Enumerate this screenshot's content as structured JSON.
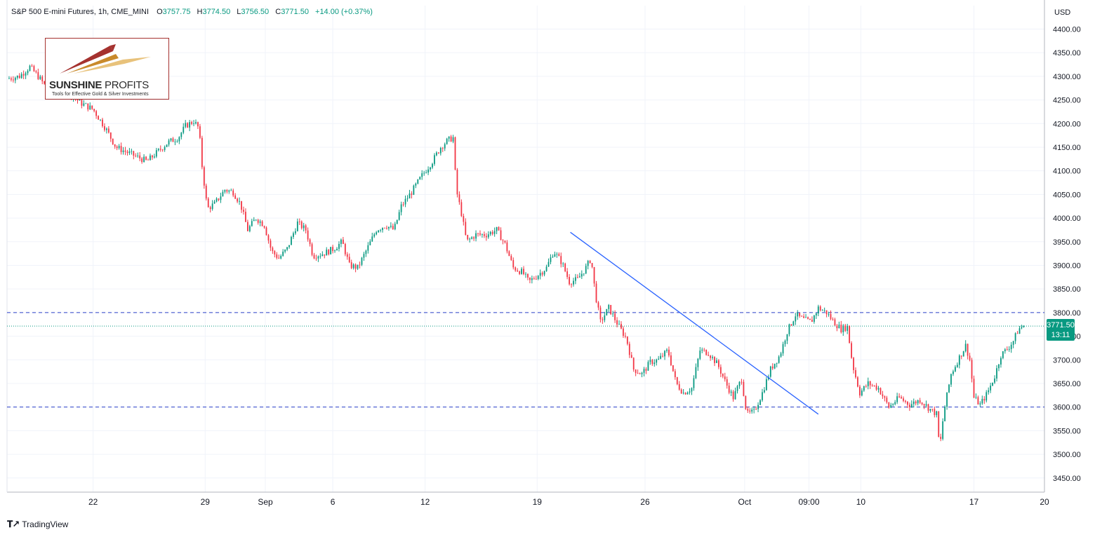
{
  "header": {
    "symbol": "S&P 500 E-mini Futures, 1h, CME_MINI",
    "o_label": "O",
    "o_value": "3757.75",
    "h_label": "H",
    "h_value": "3774.50",
    "l_label": "L",
    "l_value": "3756.50",
    "c_label": "C",
    "c_value": "3771.50",
    "change": "+14.00 (+0.37%)"
  },
  "currency": "USD",
  "current_price": {
    "price": "3771.50",
    "countdown": "13:11"
  },
  "watermark": {
    "name_bold": "SUNSHINE",
    "name_thin": "PROFITS",
    "tagline": "Tools for Effective Gold & Silver Investments"
  },
  "footer": {
    "brand": "TradingView"
  },
  "colors": {
    "up": "#089981",
    "down": "#f23645",
    "level_line": "#2a3fc7",
    "trendline": "#2962ff",
    "grid": "#f0f3fa"
  },
  "chart_data": {
    "type": "candlestick",
    "title": "S&P 500 E-mini Futures, 1h, CME_MINI",
    "ylim": [
      3420,
      4420
    ],
    "y_ticks": [
      3450,
      3500,
      3550,
      3600,
      3650,
      3700,
      3750,
      3800,
      3850,
      3900,
      3950,
      4000,
      4050,
      4100,
      4150,
      4200,
      4250,
      4300,
      4350,
      4400
    ],
    "y_tick_labels": [
      "3450.00",
      "3500.00",
      "3550.00",
      "3600.00",
      "3650.00",
      "3700.00",
      "3750.00",
      "3800.00",
      "3850.00",
      "3900.00",
      "3950.00",
      "4000.00",
      "4050.00",
      "4100.00",
      "4150.00",
      "4200.00",
      "4250.00",
      "4300.00",
      "4350.00",
      "4400.00"
    ],
    "x_tick_labels": [
      "22",
      "29",
      "Sep",
      "6",
      "12",
      "19",
      "26",
      "Oct",
      "09:00",
      "10",
      "17",
      "20"
    ],
    "x_ticks_t": [
      0.083,
      0.191,
      0.249,
      0.314,
      0.403,
      0.511,
      0.615,
      0.711,
      0.773,
      0.823,
      0.932,
      1.0
    ],
    "price_path": [
      [
        0.0,
        4295
      ],
      [
        0.012,
        4300
      ],
      [
        0.022,
        4320
      ],
      [
        0.03,
        4300
      ],
      [
        0.04,
        4270
      ],
      [
        0.055,
        4275
      ],
      [
        0.07,
        4245
      ],
      [
        0.083,
        4230
      ],
      [
        0.095,
        4190
      ],
      [
        0.105,
        4150
      ],
      [
        0.115,
        4140
      ],
      [
        0.125,
        4130
      ],
      [
        0.135,
        4120
      ],
      [
        0.145,
        4140
      ],
      [
        0.155,
        4160
      ],
      [
        0.165,
        4170
      ],
      [
        0.172,
        4195
      ],
      [
        0.18,
        4205
      ],
      [
        0.185,
        4190
      ],
      [
        0.188,
        4110
      ],
      [
        0.193,
        4020
      ],
      [
        0.2,
        4030
      ],
      [
        0.21,
        4060
      ],
      [
        0.218,
        4055
      ],
      [
        0.225,
        4030
      ],
      [
        0.232,
        3975
      ],
      [
        0.24,
        4000
      ],
      [
        0.248,
        3985
      ],
      [
        0.255,
        3930
      ],
      [
        0.262,
        3915
      ],
      [
        0.27,
        3935
      ],
      [
        0.28,
        3990
      ],
      [
        0.288,
        3975
      ],
      [
        0.295,
        3920
      ],
      [
        0.305,
        3925
      ],
      [
        0.315,
        3935
      ],
      [
        0.323,
        3950
      ],
      [
        0.33,
        3900
      ],
      [
        0.338,
        3895
      ],
      [
        0.346,
        3930
      ],
      [
        0.356,
        3975
      ],
      [
        0.365,
        3985
      ],
      [
        0.373,
        3975
      ],
      [
        0.38,
        4025
      ],
      [
        0.39,
        4055
      ],
      [
        0.4,
        4090
      ],
      [
        0.41,
        4120
      ],
      [
        0.418,
        4150
      ],
      [
        0.425,
        4165
      ],
      [
        0.43,
        4170
      ],
      [
        0.433,
        4060
      ],
      [
        0.438,
        4010
      ],
      [
        0.443,
        3950
      ],
      [
        0.452,
        3965
      ],
      [
        0.462,
        3965
      ],
      [
        0.472,
        3975
      ],
      [
        0.48,
        3945
      ],
      [
        0.488,
        3895
      ],
      [
        0.497,
        3885
      ],
      [
        0.503,
        3865
      ],
      [
        0.512,
        3880
      ],
      [
        0.52,
        3895
      ],
      [
        0.527,
        3930
      ],
      [
        0.535,
        3905
      ],
      [
        0.542,
        3865
      ],
      [
        0.55,
        3870
      ],
      [
        0.558,
        3895
      ],
      [
        0.563,
        3915
      ],
      [
        0.567,
        3840
      ],
      [
        0.572,
        3780
      ],
      [
        0.58,
        3810
      ],
      [
        0.59,
        3770
      ],
      [
        0.597,
        3745
      ],
      [
        0.604,
        3680
      ],
      [
        0.612,
        3670
      ],
      [
        0.62,
        3695
      ],
      [
        0.628,
        3700
      ],
      [
        0.637,
        3720
      ],
      [
        0.645,
        3650
      ],
      [
        0.652,
        3630
      ],
      [
        0.66,
        3640
      ],
      [
        0.668,
        3720
      ],
      [
        0.676,
        3715
      ],
      [
        0.685,
        3690
      ],
      [
        0.693,
        3650
      ],
      [
        0.7,
        3620
      ],
      [
        0.708,
        3660
      ],
      [
        0.713,
        3585
      ],
      [
        0.72,
        3590
      ],
      [
        0.728,
        3630
      ],
      [
        0.736,
        3680
      ],
      [
        0.745,
        3710
      ],
      [
        0.752,
        3760
      ],
      [
        0.76,
        3795
      ],
      [
        0.768,
        3785
      ],
      [
        0.775,
        3780
      ],
      [
        0.782,
        3810
      ],
      [
        0.79,
        3800
      ],
      [
        0.797,
        3780
      ],
      [
        0.804,
        3765
      ],
      [
        0.81,
        3770
      ],
      [
        0.815,
        3690
      ],
      [
        0.822,
        3630
      ],
      [
        0.83,
        3650
      ],
      [
        0.84,
        3640
      ],
      [
        0.85,
        3600
      ],
      [
        0.86,
        3620
      ],
      [
        0.87,
        3605
      ],
      [
        0.88,
        3615
      ],
      [
        0.89,
        3595
      ],
      [
        0.896,
        3585
      ],
      [
        0.899,
        3510
      ],
      [
        0.903,
        3590
      ],
      [
        0.91,
        3670
      ],
      [
        0.918,
        3705
      ],
      [
        0.924,
        3730
      ],
      [
        0.928,
        3700
      ],
      [
        0.932,
        3620
      ],
      [
        0.938,
        3605
      ],
      [
        0.945,
        3630
      ],
      [
        0.952,
        3665
      ],
      [
        0.958,
        3710
      ],
      [
        0.965,
        3725
      ],
      [
        0.97,
        3740
      ],
      [
        0.975,
        3765
      ],
      [
        0.98,
        3771.5
      ]
    ],
    "horizontal_levels": [
      3800,
      3600
    ],
    "current_price": 3771.5,
    "trendline": {
      "from": [
        0.543,
        3970
      ],
      "to": [
        0.782,
        3585
      ]
    }
  }
}
